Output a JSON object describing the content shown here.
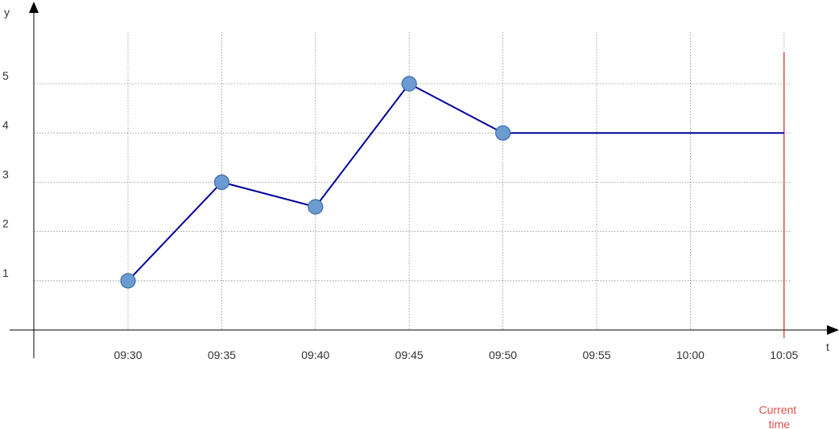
{
  "chart_data": {
    "type": "line",
    "x": [
      "09:30",
      "09:35",
      "09:40",
      "09:45",
      "09:50",
      "10:05"
    ],
    "y": [
      1,
      3,
      2.5,
      5,
      4,
      4
    ],
    "points": [
      {
        "x": "09:30",
        "y": 1
      },
      {
        "x": "09:35",
        "y": 3
      },
      {
        "x": "09:40",
        "y": 2.5
      },
      {
        "x": "09:45",
        "y": 5
      },
      {
        "x": "09:50",
        "y": 4
      }
    ],
    "line_end": {
      "x": "10:05",
      "y": 4
    },
    "x_ticks": [
      "09:30",
      "09:35",
      "09:40",
      "09:45",
      "09:50",
      "09:55",
      "10:00",
      "10:05"
    ],
    "y_ticks": [
      1,
      2,
      3,
      4,
      5
    ],
    "xlabel": "t",
    "ylabel": "y",
    "grid": true,
    "current_time": {
      "x": "10:05",
      "label_lines": [
        "Current",
        "time"
      ]
    }
  },
  "colors": {
    "line": "#000099",
    "point_fill": "#6c9bd2",
    "point_stroke": "#3a6ea5",
    "current_time": "#cc0000",
    "current_time_label": "#e05050"
  }
}
